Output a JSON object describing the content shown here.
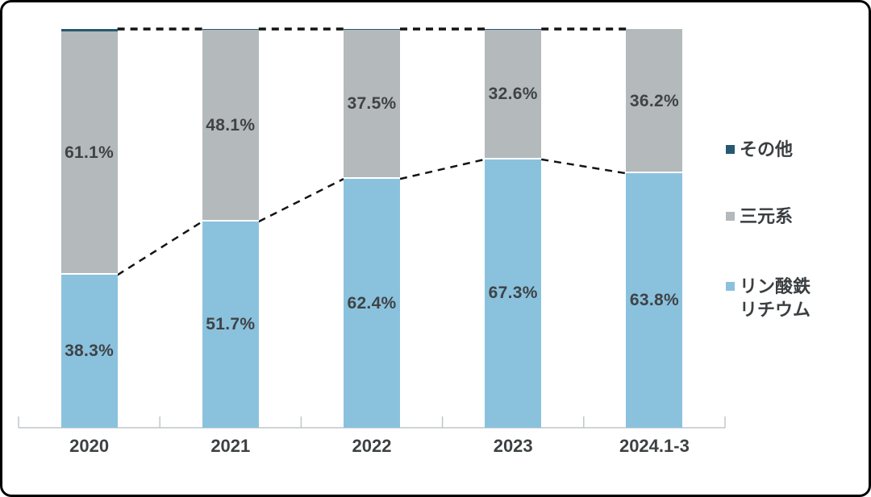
{
  "chart_data": {
    "type": "bar",
    "variant": "stacked-100-percent",
    "title": "",
    "xlabel": "",
    "ylabel": "",
    "unit": "%",
    "ylim": [
      0,
      100
    ],
    "grid": false,
    "categories": [
      "2020",
      "2021",
      "2022",
      "2023",
      "2024.1-3"
    ],
    "series": [
      {
        "name": "リン酸鉄リチウム",
        "color": "#8ac2de",
        "values": [
          38.3,
          51.7,
          62.4,
          67.3,
          63.8
        ],
        "labels": [
          "38.3%",
          "51.7%",
          "62.4%",
          "67.3%",
          "63.8%"
        ]
      },
      {
        "name": "三元系",
        "color": "#b4b9bc",
        "values": [
          61.1,
          48.1,
          37.5,
          32.6,
          36.2
        ],
        "labels": [
          "61.1%",
          "48.1%",
          "37.5%",
          "32.6%",
          "36.2%"
        ]
      },
      {
        "name": "その他",
        "color": "#26586f",
        "values": [
          0.6,
          0.2,
          0.1,
          0.1,
          0.0
        ],
        "labels": [
          "",
          "",
          "",
          "",
          ""
        ]
      }
    ],
    "legend": {
      "position": "right",
      "items": [
        {
          "label": "その他",
          "color": "#26586f"
        },
        {
          "label": "三元系",
          "color": "#b4b9bc"
        },
        {
          "label": "リン酸鉄リチウム",
          "color": "#8ac2de"
        }
      ]
    },
    "connector_lines": {
      "style": "dashed",
      "color": "#141414",
      "description": "dashed series lines between adjacent bars at top of その他 (100%) and at top of リン酸鉄リチウム"
    },
    "axis": {
      "line_color": "#c2c6c8",
      "tick_count": 6
    }
  }
}
